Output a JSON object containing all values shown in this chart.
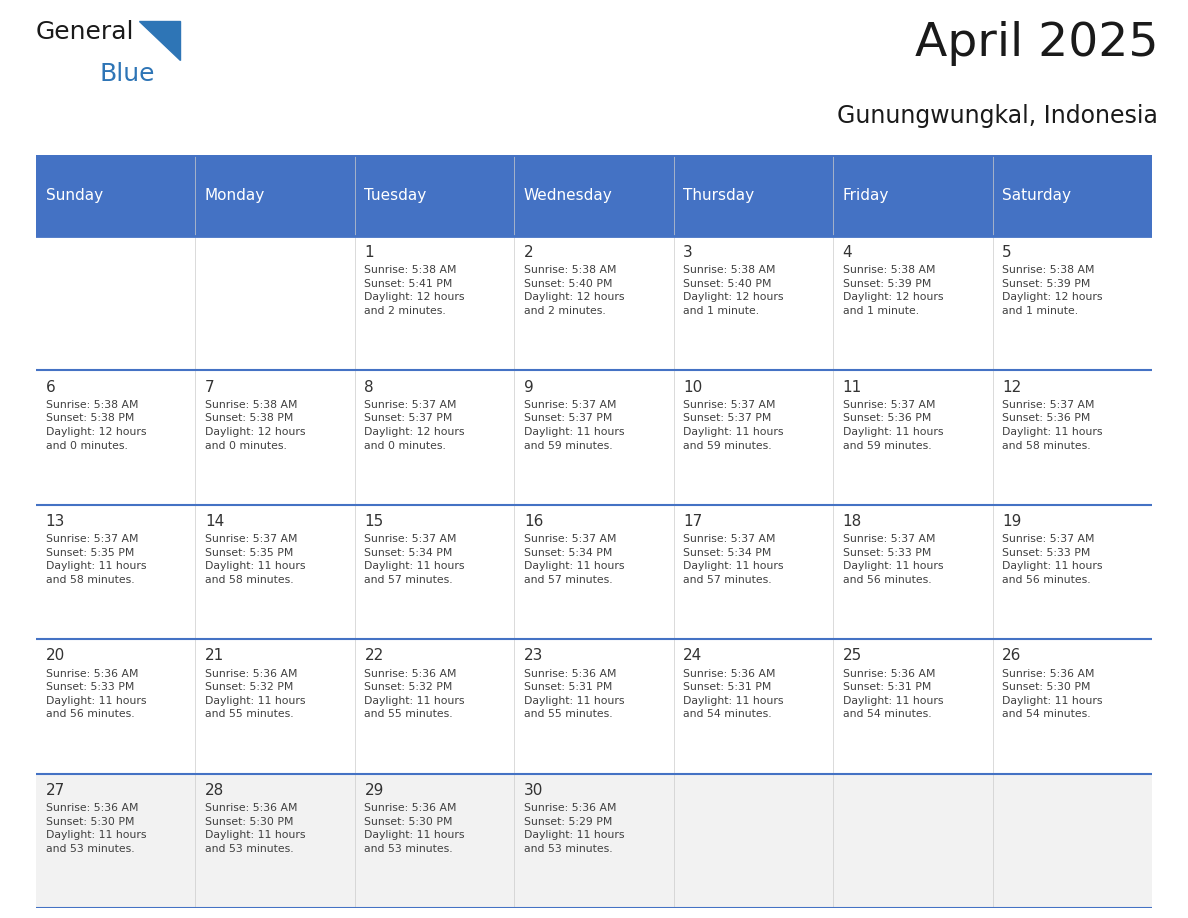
{
  "title": "April 2025",
  "subtitle": "Gunungwungkal, Indonesia",
  "header_bg_color": "#4472C4",
  "header_text_color": "#FFFFFF",
  "day_names": [
    "Sunday",
    "Monday",
    "Tuesday",
    "Wednesday",
    "Thursday",
    "Friday",
    "Saturday"
  ],
  "grid_line_color": "#4472C4",
  "row_line_color": "#4472C4",
  "cell_bg_even": "#FFFFFF",
  "cell_bg_last": "#F0F0F0",
  "text_color": "#404040",
  "day_num_color": "#333333",
  "title_color": "#1a1a1a",
  "logo_general_color": "#1a1a1a",
  "logo_blue_color": "#2E75B6",
  "logo_triangle_color": "#2E75B6",
  "days": [
    {
      "day": null,
      "info": null
    },
    {
      "day": null,
      "info": null
    },
    {
      "day": 1,
      "info": "Sunrise: 5:38 AM\nSunset: 5:41 PM\nDaylight: 12 hours\nand 2 minutes."
    },
    {
      "day": 2,
      "info": "Sunrise: 5:38 AM\nSunset: 5:40 PM\nDaylight: 12 hours\nand 2 minutes."
    },
    {
      "day": 3,
      "info": "Sunrise: 5:38 AM\nSunset: 5:40 PM\nDaylight: 12 hours\nand 1 minute."
    },
    {
      "day": 4,
      "info": "Sunrise: 5:38 AM\nSunset: 5:39 PM\nDaylight: 12 hours\nand 1 minute."
    },
    {
      "day": 5,
      "info": "Sunrise: 5:38 AM\nSunset: 5:39 PM\nDaylight: 12 hours\nand 1 minute."
    },
    {
      "day": 6,
      "info": "Sunrise: 5:38 AM\nSunset: 5:38 PM\nDaylight: 12 hours\nand 0 minutes."
    },
    {
      "day": 7,
      "info": "Sunrise: 5:38 AM\nSunset: 5:38 PM\nDaylight: 12 hours\nand 0 minutes."
    },
    {
      "day": 8,
      "info": "Sunrise: 5:37 AM\nSunset: 5:37 PM\nDaylight: 12 hours\nand 0 minutes."
    },
    {
      "day": 9,
      "info": "Sunrise: 5:37 AM\nSunset: 5:37 PM\nDaylight: 11 hours\nand 59 minutes."
    },
    {
      "day": 10,
      "info": "Sunrise: 5:37 AM\nSunset: 5:37 PM\nDaylight: 11 hours\nand 59 minutes."
    },
    {
      "day": 11,
      "info": "Sunrise: 5:37 AM\nSunset: 5:36 PM\nDaylight: 11 hours\nand 59 minutes."
    },
    {
      "day": 12,
      "info": "Sunrise: 5:37 AM\nSunset: 5:36 PM\nDaylight: 11 hours\nand 58 minutes."
    },
    {
      "day": 13,
      "info": "Sunrise: 5:37 AM\nSunset: 5:35 PM\nDaylight: 11 hours\nand 58 minutes."
    },
    {
      "day": 14,
      "info": "Sunrise: 5:37 AM\nSunset: 5:35 PM\nDaylight: 11 hours\nand 58 minutes."
    },
    {
      "day": 15,
      "info": "Sunrise: 5:37 AM\nSunset: 5:34 PM\nDaylight: 11 hours\nand 57 minutes."
    },
    {
      "day": 16,
      "info": "Sunrise: 5:37 AM\nSunset: 5:34 PM\nDaylight: 11 hours\nand 57 minutes."
    },
    {
      "day": 17,
      "info": "Sunrise: 5:37 AM\nSunset: 5:34 PM\nDaylight: 11 hours\nand 57 minutes."
    },
    {
      "day": 18,
      "info": "Sunrise: 5:37 AM\nSunset: 5:33 PM\nDaylight: 11 hours\nand 56 minutes."
    },
    {
      "day": 19,
      "info": "Sunrise: 5:37 AM\nSunset: 5:33 PM\nDaylight: 11 hours\nand 56 minutes."
    },
    {
      "day": 20,
      "info": "Sunrise: 5:36 AM\nSunset: 5:33 PM\nDaylight: 11 hours\nand 56 minutes."
    },
    {
      "day": 21,
      "info": "Sunrise: 5:36 AM\nSunset: 5:32 PM\nDaylight: 11 hours\nand 55 minutes."
    },
    {
      "day": 22,
      "info": "Sunrise: 5:36 AM\nSunset: 5:32 PM\nDaylight: 11 hours\nand 55 minutes."
    },
    {
      "day": 23,
      "info": "Sunrise: 5:36 AM\nSunset: 5:31 PM\nDaylight: 11 hours\nand 55 minutes."
    },
    {
      "day": 24,
      "info": "Sunrise: 5:36 AM\nSunset: 5:31 PM\nDaylight: 11 hours\nand 54 minutes."
    },
    {
      "day": 25,
      "info": "Sunrise: 5:36 AM\nSunset: 5:31 PM\nDaylight: 11 hours\nand 54 minutes."
    },
    {
      "day": 26,
      "info": "Sunrise: 5:36 AM\nSunset: 5:30 PM\nDaylight: 11 hours\nand 54 minutes."
    },
    {
      "day": 27,
      "info": "Sunrise: 5:36 AM\nSunset: 5:30 PM\nDaylight: 11 hours\nand 53 minutes."
    },
    {
      "day": 28,
      "info": "Sunrise: 5:36 AM\nSunset: 5:30 PM\nDaylight: 11 hours\nand 53 minutes."
    },
    {
      "day": 29,
      "info": "Sunrise: 5:36 AM\nSunset: 5:30 PM\nDaylight: 11 hours\nand 53 minutes."
    },
    {
      "day": 30,
      "info": "Sunrise: 5:36 AM\nSunset: 5:29 PM\nDaylight: 11 hours\nand 53 minutes."
    },
    {
      "day": null,
      "info": null
    },
    {
      "day": null,
      "info": null
    },
    {
      "day": null,
      "info": null
    }
  ],
  "num_rows": 5,
  "num_cols": 7
}
